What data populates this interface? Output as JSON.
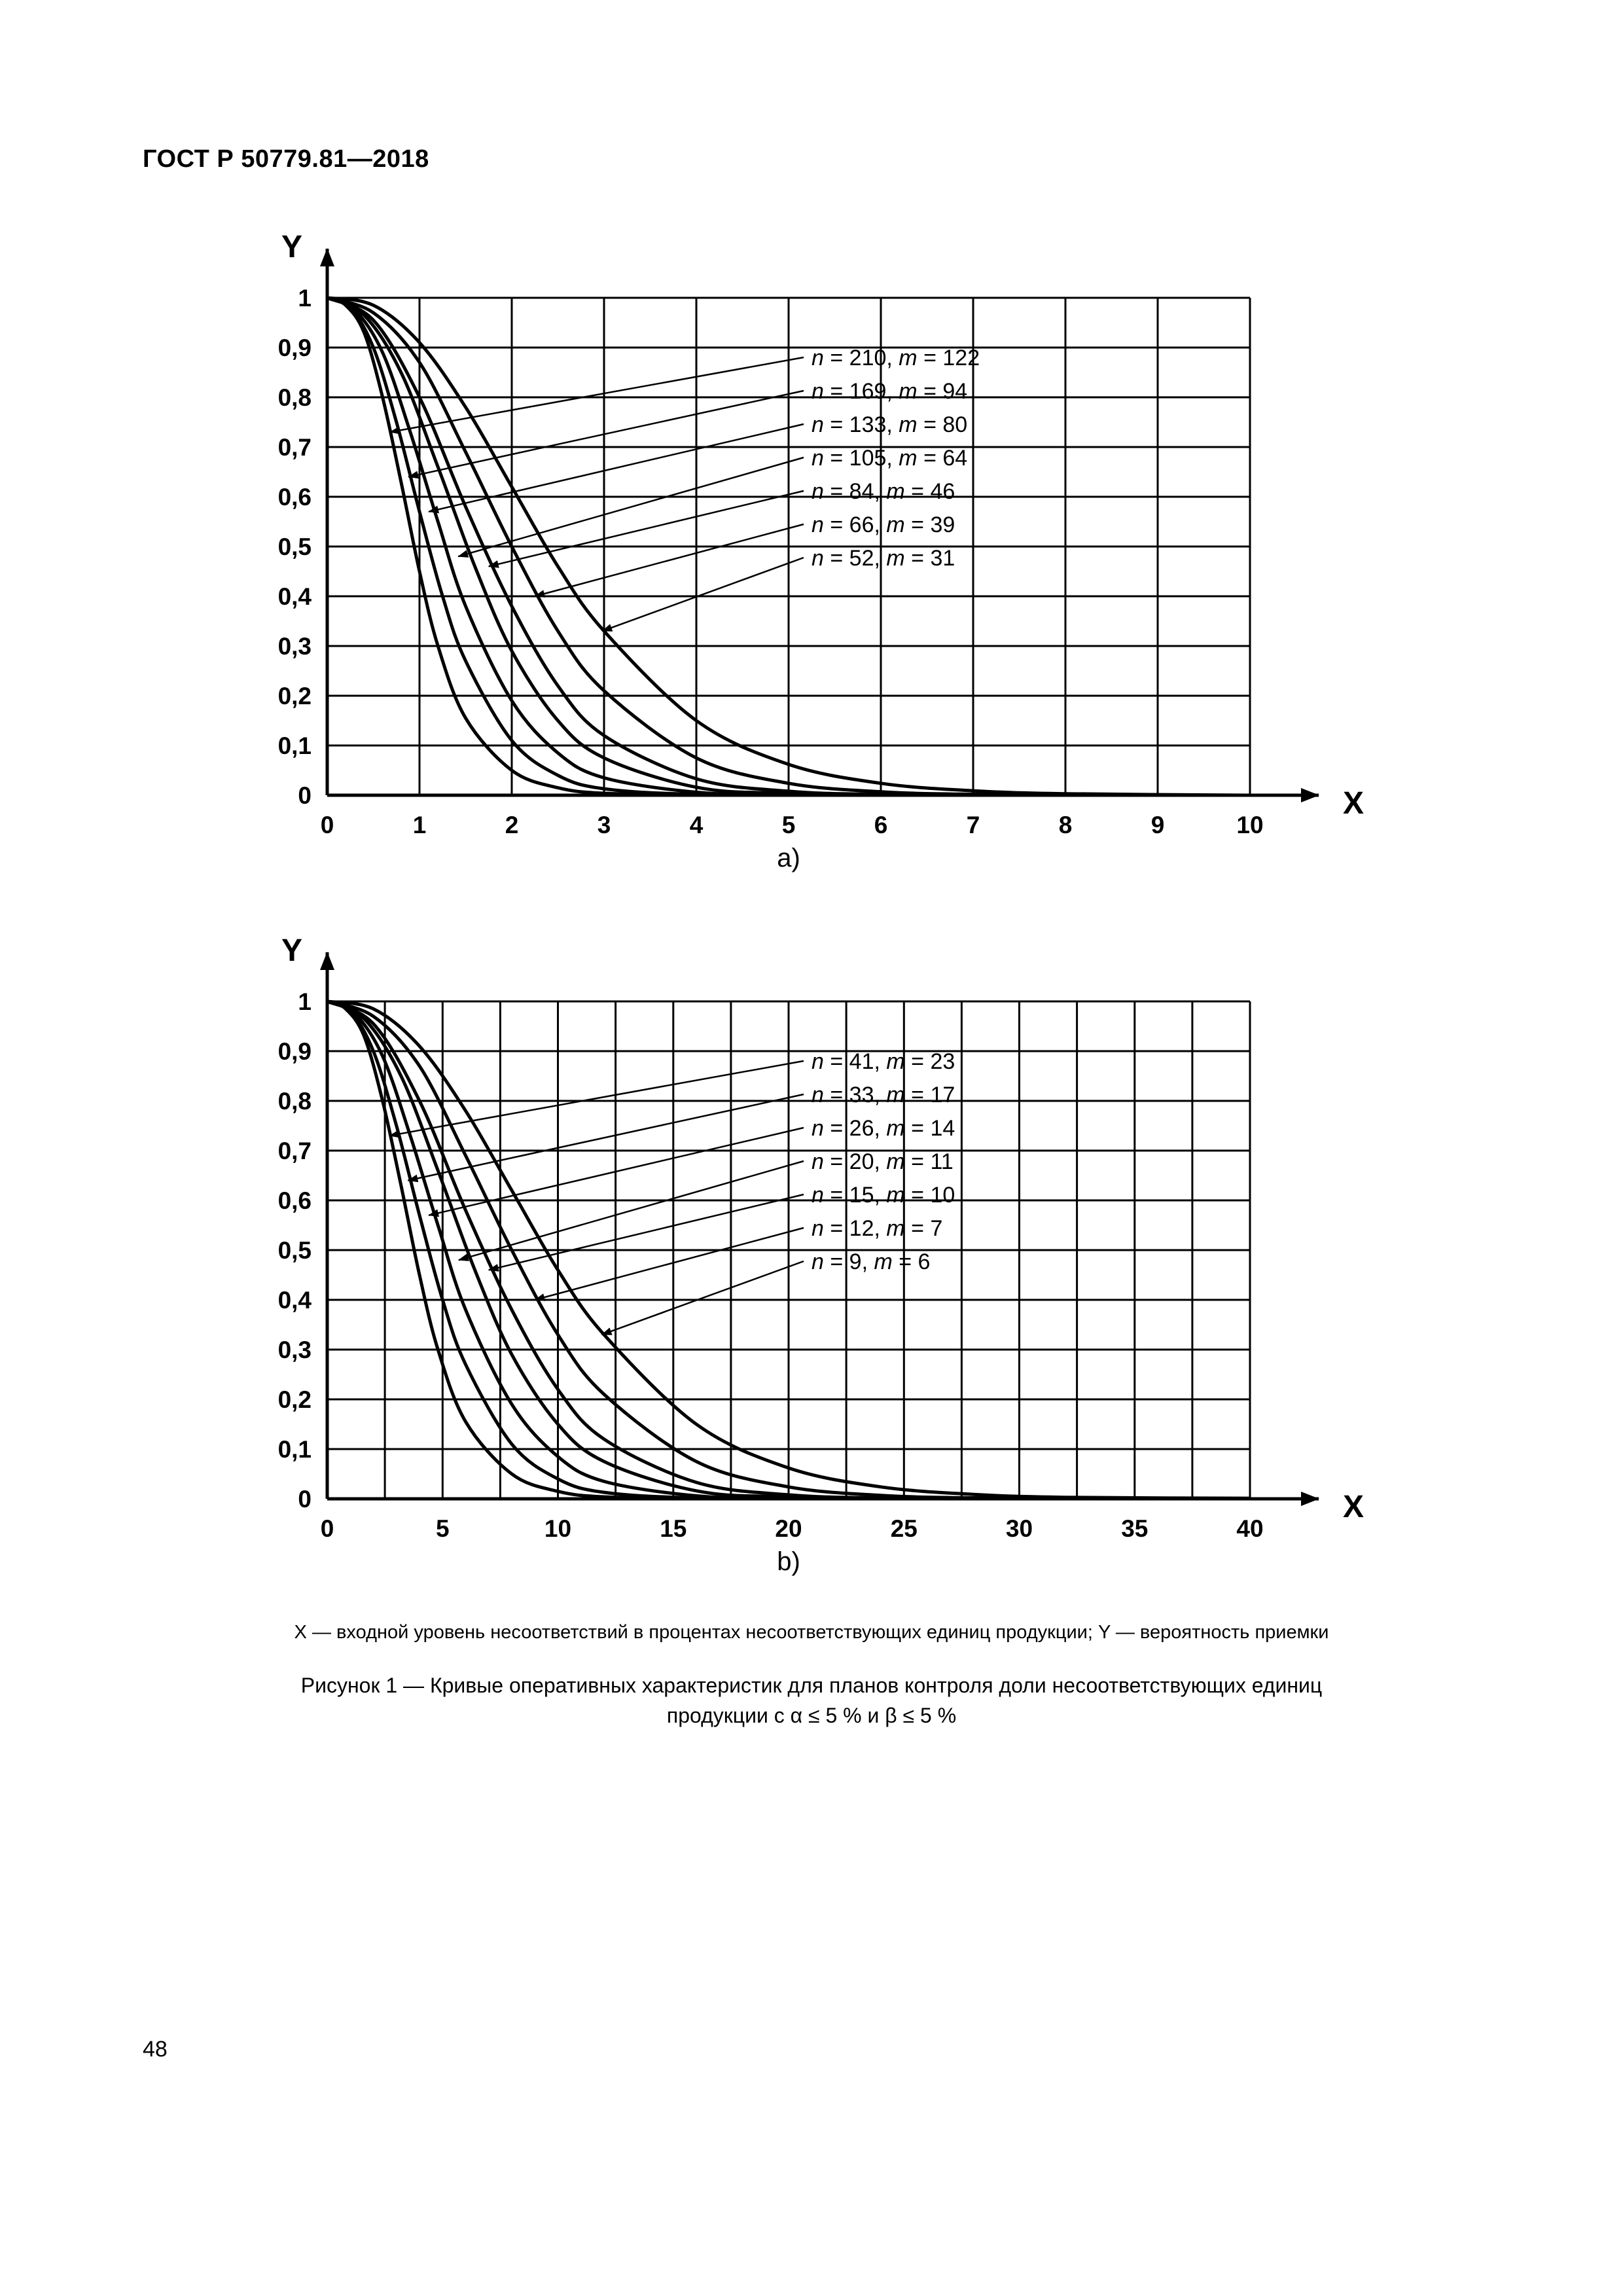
{
  "page": {
    "header": "ГОСТ Р 50779.81—2018",
    "page_number": "48",
    "footnote": "X — входной уровень несоответствий в процентах несоответствующих единиц продукции; Y — вероятность приемки",
    "caption_line1": "Рисунок 1 — Кривые оперативных характеристик для планов контроля доли несоответствующих единиц",
    "caption_line2": "продукции с α ≤ 5 % и β ≤ 5 %"
  },
  "chart_data": [
    {
      "type": "line",
      "sublabel": "a)",
      "xlabel": "X",
      "ylabel": "Y",
      "xlim": [
        0,
        10
      ],
      "ylim": [
        0,
        1
      ],
      "grid": true,
      "legend_position": "top-right",
      "x_grid_step": 1,
      "y_grid_step": 0.1,
      "x_ticks": [
        0,
        1,
        2,
        3,
        4,
        5,
        6,
        7,
        8,
        9,
        10
      ],
      "x_tick_labels": [
        "0",
        "1",
        "2",
        "3",
        "4",
        "5",
        "6",
        "7",
        "8",
        "9",
        "10"
      ],
      "y_ticks": [
        0,
        0.1,
        0.2,
        0.3,
        0.4,
        0.5,
        0.6,
        0.7,
        0.8,
        0.9,
        1
      ],
      "y_tick_labels": [
        "0",
        "0,1",
        "0,2",
        "0,3",
        "0,4",
        "0,5",
        "0,6",
        "0,7",
        "0,8",
        "0,9",
        "1"
      ],
      "series": [
        {
          "n": 210,
          "m": 122,
          "label": "n = 210, m = 122",
          "pointer": [
            0.68,
            0.73
          ],
          "points": [
            [
              0,
              1
            ],
            [
              0.2,
              0.985
            ],
            [
              0.4,
              0.93
            ],
            [
              0.6,
              0.8
            ],
            [
              0.8,
              0.63
            ],
            [
              1,
              0.45
            ],
            [
              1.2,
              0.3
            ],
            [
              1.5,
              0.155
            ],
            [
              2,
              0.05
            ],
            [
              2.5,
              0.015
            ],
            [
              3,
              0.004
            ],
            [
              4,
              0.001
            ],
            [
              6,
              0
            ],
            [
              10,
              0
            ]
          ]
        },
        {
          "n": 169,
          "m": 94,
          "label": "n = 169, m = 94",
          "pointer": [
            0.88,
            0.64
          ],
          "points": [
            [
              0,
              1
            ],
            [
              0.25,
              0.98
            ],
            [
              0.5,
              0.9
            ],
            [
              0.75,
              0.75
            ],
            [
              1,
              0.57
            ],
            [
              1.25,
              0.4
            ],
            [
              1.5,
              0.27
            ],
            [
              2,
              0.11
            ],
            [
              2.5,
              0.04
            ],
            [
              3,
              0.013
            ],
            [
              4,
              0.002
            ],
            [
              6,
              0
            ],
            [
              10,
              0
            ]
          ]
        },
        {
          "n": 133,
          "m": 80,
          "label": "n = 133, m = 80",
          "pointer": [
            1.1,
            0.57
          ],
          "points": [
            [
              0,
              1
            ],
            [
              0.3,
              0.975
            ],
            [
              0.6,
              0.89
            ],
            [
              0.9,
              0.73
            ],
            [
              1.2,
              0.55
            ],
            [
              1.5,
              0.38
            ],
            [
              2,
              0.19
            ],
            [
              2.5,
              0.085
            ],
            [
              3,
              0.035
            ],
            [
              4,
              0.006
            ],
            [
              5,
              0.001
            ],
            [
              7,
              0
            ],
            [
              10,
              0
            ]
          ]
        },
        {
          "n": 105,
          "m": 64,
          "label": "n = 105, m = 64",
          "pointer": [
            1.42,
            0.48
          ],
          "points": [
            [
              0,
              1
            ],
            [
              0.4,
              0.965
            ],
            [
              0.8,
              0.85
            ],
            [
              1.2,
              0.66
            ],
            [
              1.6,
              0.46
            ],
            [
              2,
              0.29
            ],
            [
              2.5,
              0.15
            ],
            [
              3,
              0.075
            ],
            [
              4,
              0.016
            ],
            [
              5,
              0.004
            ],
            [
              7,
              0
            ],
            [
              10,
              0
            ]
          ]
        },
        {
          "n": 84,
          "m": 46,
          "label": "n = 84, m = 46",
          "pointer": [
            1.75,
            0.46
          ],
          "points": [
            [
              0,
              1
            ],
            [
              0.5,
              0.955
            ],
            [
              1,
              0.8
            ],
            [
              1.5,
              0.58
            ],
            [
              2,
              0.38
            ],
            [
              2.5,
              0.22
            ],
            [
              3,
              0.12
            ],
            [
              4,
              0.033
            ],
            [
              5,
              0.008
            ],
            [
              6,
              0.002
            ],
            [
              8,
              0
            ],
            [
              10,
              0
            ]
          ]
        },
        {
          "n": 66,
          "m": 39,
          "label": "n = 66, m = 39",
          "pointer": [
            2.25,
            0.4
          ],
          "points": [
            [
              0,
              1
            ],
            [
              0.5,
              0.97
            ],
            [
              1,
              0.87
            ],
            [
              1.5,
              0.69
            ],
            [
              2,
              0.5
            ],
            [
              2.5,
              0.33
            ],
            [
              3,
              0.21
            ],
            [
              4,
              0.075
            ],
            [
              5,
              0.024
            ],
            [
              6,
              0.007
            ],
            [
              7,
              0.002
            ],
            [
              9,
              0
            ],
            [
              10,
              0
            ]
          ]
        },
        {
          "n": 52,
          "m": 31,
          "label": "n = 52, m = 31",
          "pointer": [
            2.98,
            0.33
          ],
          "points": [
            [
              0,
              1
            ],
            [
              0.5,
              0.985
            ],
            [
              1,
              0.91
            ],
            [
              1.5,
              0.78
            ],
            [
              2,
              0.62
            ],
            [
              2.5,
              0.46
            ],
            [
              3,
              0.33
            ],
            [
              4,
              0.15
            ],
            [
              5,
              0.062
            ],
            [
              6,
              0.024
            ],
            [
              7,
              0.009
            ],
            [
              8,
              0.003
            ],
            [
              10,
              0
            ]
          ]
        }
      ]
    },
    {
      "type": "line",
      "sublabel": "b)",
      "xlabel": "X",
      "ylabel": "Y",
      "xlim": [
        0,
        40
      ],
      "ylim": [
        0,
        1
      ],
      "grid": true,
      "legend_position": "top-right",
      "x_grid_step": 2.5,
      "y_grid_step": 0.1,
      "x_ticks": [
        0,
        5,
        10,
        15,
        20,
        25,
        30,
        35,
        40
      ],
      "x_tick_labels": [
        "0",
        "5",
        "10",
        "15",
        "20",
        "25",
        "30",
        "35",
        "40"
      ],
      "y_ticks": [
        0,
        0.1,
        0.2,
        0.3,
        0.4,
        0.5,
        0.6,
        0.7,
        0.8,
        0.9,
        1
      ],
      "y_tick_labels": [
        "0",
        "0,1",
        "0,2",
        "0,3",
        "0,4",
        "0,5",
        "0,6",
        "0,7",
        "0,8",
        "0,9",
        "1"
      ],
      "series": [
        {
          "n": 41,
          "m": 23,
          "label": "n = 41, m = 23",
          "pointer": [
            2.7,
            0.73
          ],
          "points": [
            [
              0,
              1
            ],
            [
              0.8,
              0.985
            ],
            [
              1.6,
              0.93
            ],
            [
              2.4,
              0.8
            ],
            [
              3.2,
              0.63
            ],
            [
              4,
              0.45
            ],
            [
              4.8,
              0.3
            ],
            [
              6,
              0.155
            ],
            [
              8,
              0.05
            ],
            [
              10,
              0.015
            ],
            [
              12,
              0.004
            ],
            [
              16,
              0.001
            ],
            [
              24,
              0
            ],
            [
              40,
              0
            ]
          ]
        },
        {
          "n": 33,
          "m": 17,
          "label": "n = 33, m = 17",
          "pointer": [
            3.5,
            0.64
          ],
          "points": [
            [
              0,
              1
            ],
            [
              1,
              0.98
            ],
            [
              2,
              0.9
            ],
            [
              3,
              0.75
            ],
            [
              4,
              0.57
            ],
            [
              5,
              0.4
            ],
            [
              6,
              0.27
            ],
            [
              8,
              0.11
            ],
            [
              10,
              0.04
            ],
            [
              12,
              0.013
            ],
            [
              16,
              0.002
            ],
            [
              24,
              0
            ],
            [
              40,
              0
            ]
          ]
        },
        {
          "n": 26,
          "m": 14,
          "label": "n = 26, m = 14",
          "pointer": [
            4.4,
            0.57
          ],
          "points": [
            [
              0,
              1
            ],
            [
              1.2,
              0.975
            ],
            [
              2.4,
              0.89
            ],
            [
              3.6,
              0.73
            ],
            [
              4.8,
              0.55
            ],
            [
              6,
              0.38
            ],
            [
              8,
              0.19
            ],
            [
              10,
              0.085
            ],
            [
              12,
              0.035
            ],
            [
              16,
              0.006
            ],
            [
              20,
              0.001
            ],
            [
              28,
              0
            ],
            [
              40,
              0
            ]
          ]
        },
        {
          "n": 20,
          "m": 11,
          "label": "n = 20, m = 11",
          "pointer": [
            5.7,
            0.48
          ],
          "points": [
            [
              0,
              1
            ],
            [
              1.6,
              0.965
            ],
            [
              3.2,
              0.85
            ],
            [
              4.8,
              0.66
            ],
            [
              6.4,
              0.46
            ],
            [
              8,
              0.29
            ],
            [
              10,
              0.15
            ],
            [
              12,
              0.075
            ],
            [
              16,
              0.016
            ],
            [
              20,
              0.004
            ],
            [
              28,
              0
            ],
            [
              40,
              0
            ]
          ]
        },
        {
          "n": 15,
          "m": 10,
          "label": "n = 15, m = 10",
          "pointer": [
            7,
            0.46
          ],
          "points": [
            [
              0,
              1
            ],
            [
              2,
              0.955
            ],
            [
              4,
              0.8
            ],
            [
              6,
              0.58
            ],
            [
              8,
              0.38
            ],
            [
              10,
              0.22
            ],
            [
              12,
              0.12
            ],
            [
              16,
              0.033
            ],
            [
              20,
              0.008
            ],
            [
              24,
              0.002
            ],
            [
              32,
              0
            ],
            [
              40,
              0
            ]
          ]
        },
        {
          "n": 12,
          "m": 7,
          "label": "n = 12, m = 7",
          "pointer": [
            9,
            0.4
          ],
          "points": [
            [
              0,
              1
            ],
            [
              2,
              0.97
            ],
            [
              4,
              0.87
            ],
            [
              6,
              0.69
            ],
            [
              8,
              0.5
            ],
            [
              10,
              0.33
            ],
            [
              12,
              0.21
            ],
            [
              16,
              0.075
            ],
            [
              20,
              0.024
            ],
            [
              24,
              0.007
            ],
            [
              28,
              0.002
            ],
            [
              36,
              0
            ],
            [
              40,
              0
            ]
          ]
        },
        {
          "n": 9,
          "m": 6,
          "label": "n = 9, m = 6",
          "pointer": [
            11.9,
            0.33
          ],
          "points": [
            [
              0,
              1
            ],
            [
              2,
              0.985
            ],
            [
              4,
              0.91
            ],
            [
              6,
              0.78
            ],
            [
              8,
              0.62
            ],
            [
              10,
              0.46
            ],
            [
              12,
              0.33
            ],
            [
              16,
              0.15
            ],
            [
              20,
              0.062
            ],
            [
              24,
              0.024
            ],
            [
              28,
              0.009
            ],
            [
              32,
              0.003
            ],
            [
              40,
              0.001
            ]
          ]
        }
      ]
    }
  ]
}
